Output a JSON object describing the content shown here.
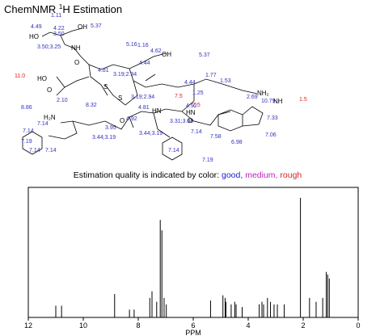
{
  "header": {
    "title": "ChemNMR",
    "title_sup": "1",
    "title_rest": "H Estimation"
  },
  "molecule": {
    "labels": [
      "1.11",
      "OH",
      "5.37",
      "4.49",
      "4.22",
      "3.50",
      "HO",
      "3.50;3.25",
      "NH",
      "5.16",
      "1.16",
      "4.62",
      "OH",
      "5.37",
      "4.44",
      "O",
      "4.81",
      "11.0",
      "HO",
      "3.19;2.94",
      "1.77",
      "1.53",
      "4.44",
      "S",
      "S",
      "NH₂",
      "1.5",
      "2.10",
      "7.5",
      "1.25",
      "O",
      "3.19;2.94",
      "2.69",
      "10.79",
      "NH",
      "7.5",
      "8.32",
      "8.86",
      "4.81",
      "4.92",
      "HN",
      "HN",
      "H₂N",
      "4.92",
      "3.31;3.06",
      "7.33",
      "7.14",
      "3.95",
      "7.14",
      "7.14",
      "3.44;3.19",
      "3.44;3.19",
      "O",
      "O",
      "7.58",
      "7.06",
      "7.19",
      "6.98",
      "7.14",
      "7.14",
      "7.14",
      "7.19"
    ]
  },
  "quality_legend": {
    "text": "Estimation quality is indicated by color:",
    "items": [
      {
        "label": "good,",
        "color": "#2020d0"
      },
      {
        "label": "medium,",
        "color": "#c020c0"
      },
      {
        "label": "rough",
        "color": "#e02020"
      }
    ]
  },
  "chart_data": {
    "type": "stick",
    "xlabel": "PPM",
    "x": [
      11.0,
      10.79,
      8.86,
      8.32,
      8.15,
      7.58,
      7.5,
      7.33,
      7.2,
      7.14,
      7.06,
      6.98,
      5.37,
      4.92,
      4.84,
      4.81,
      4.62,
      4.49,
      4.44,
      4.22,
      3.6,
      3.5,
      3.44,
      3.3,
      3.19,
      3.06,
      2.94,
      2.69,
      2.1,
      1.77,
      1.53,
      1.29,
      1.16,
      1.11,
      1.05
    ],
    "values": [
      0.09,
      0.09,
      0.18,
      0.06,
      0.06,
      0.15,
      0.2,
      0.12,
      0.75,
      0.67,
      0.15,
      0.1,
      0.13,
      0.17,
      0.15,
      0.12,
      0.1,
      0.12,
      0.1,
      0.08,
      0.1,
      0.12,
      0.1,
      0.15,
      0.12,
      0.1,
      0.1,
      0.1,
      0.92,
      0.15,
      0.12,
      0.15,
      0.35,
      0.33,
      0.3
    ],
    "color": "#000000",
    "xlim": [
      12,
      0
    ],
    "xticks": [
      12,
      10,
      8,
      6,
      4,
      2,
      0
    ],
    "ylim": [
      0,
      1
    ]
  }
}
